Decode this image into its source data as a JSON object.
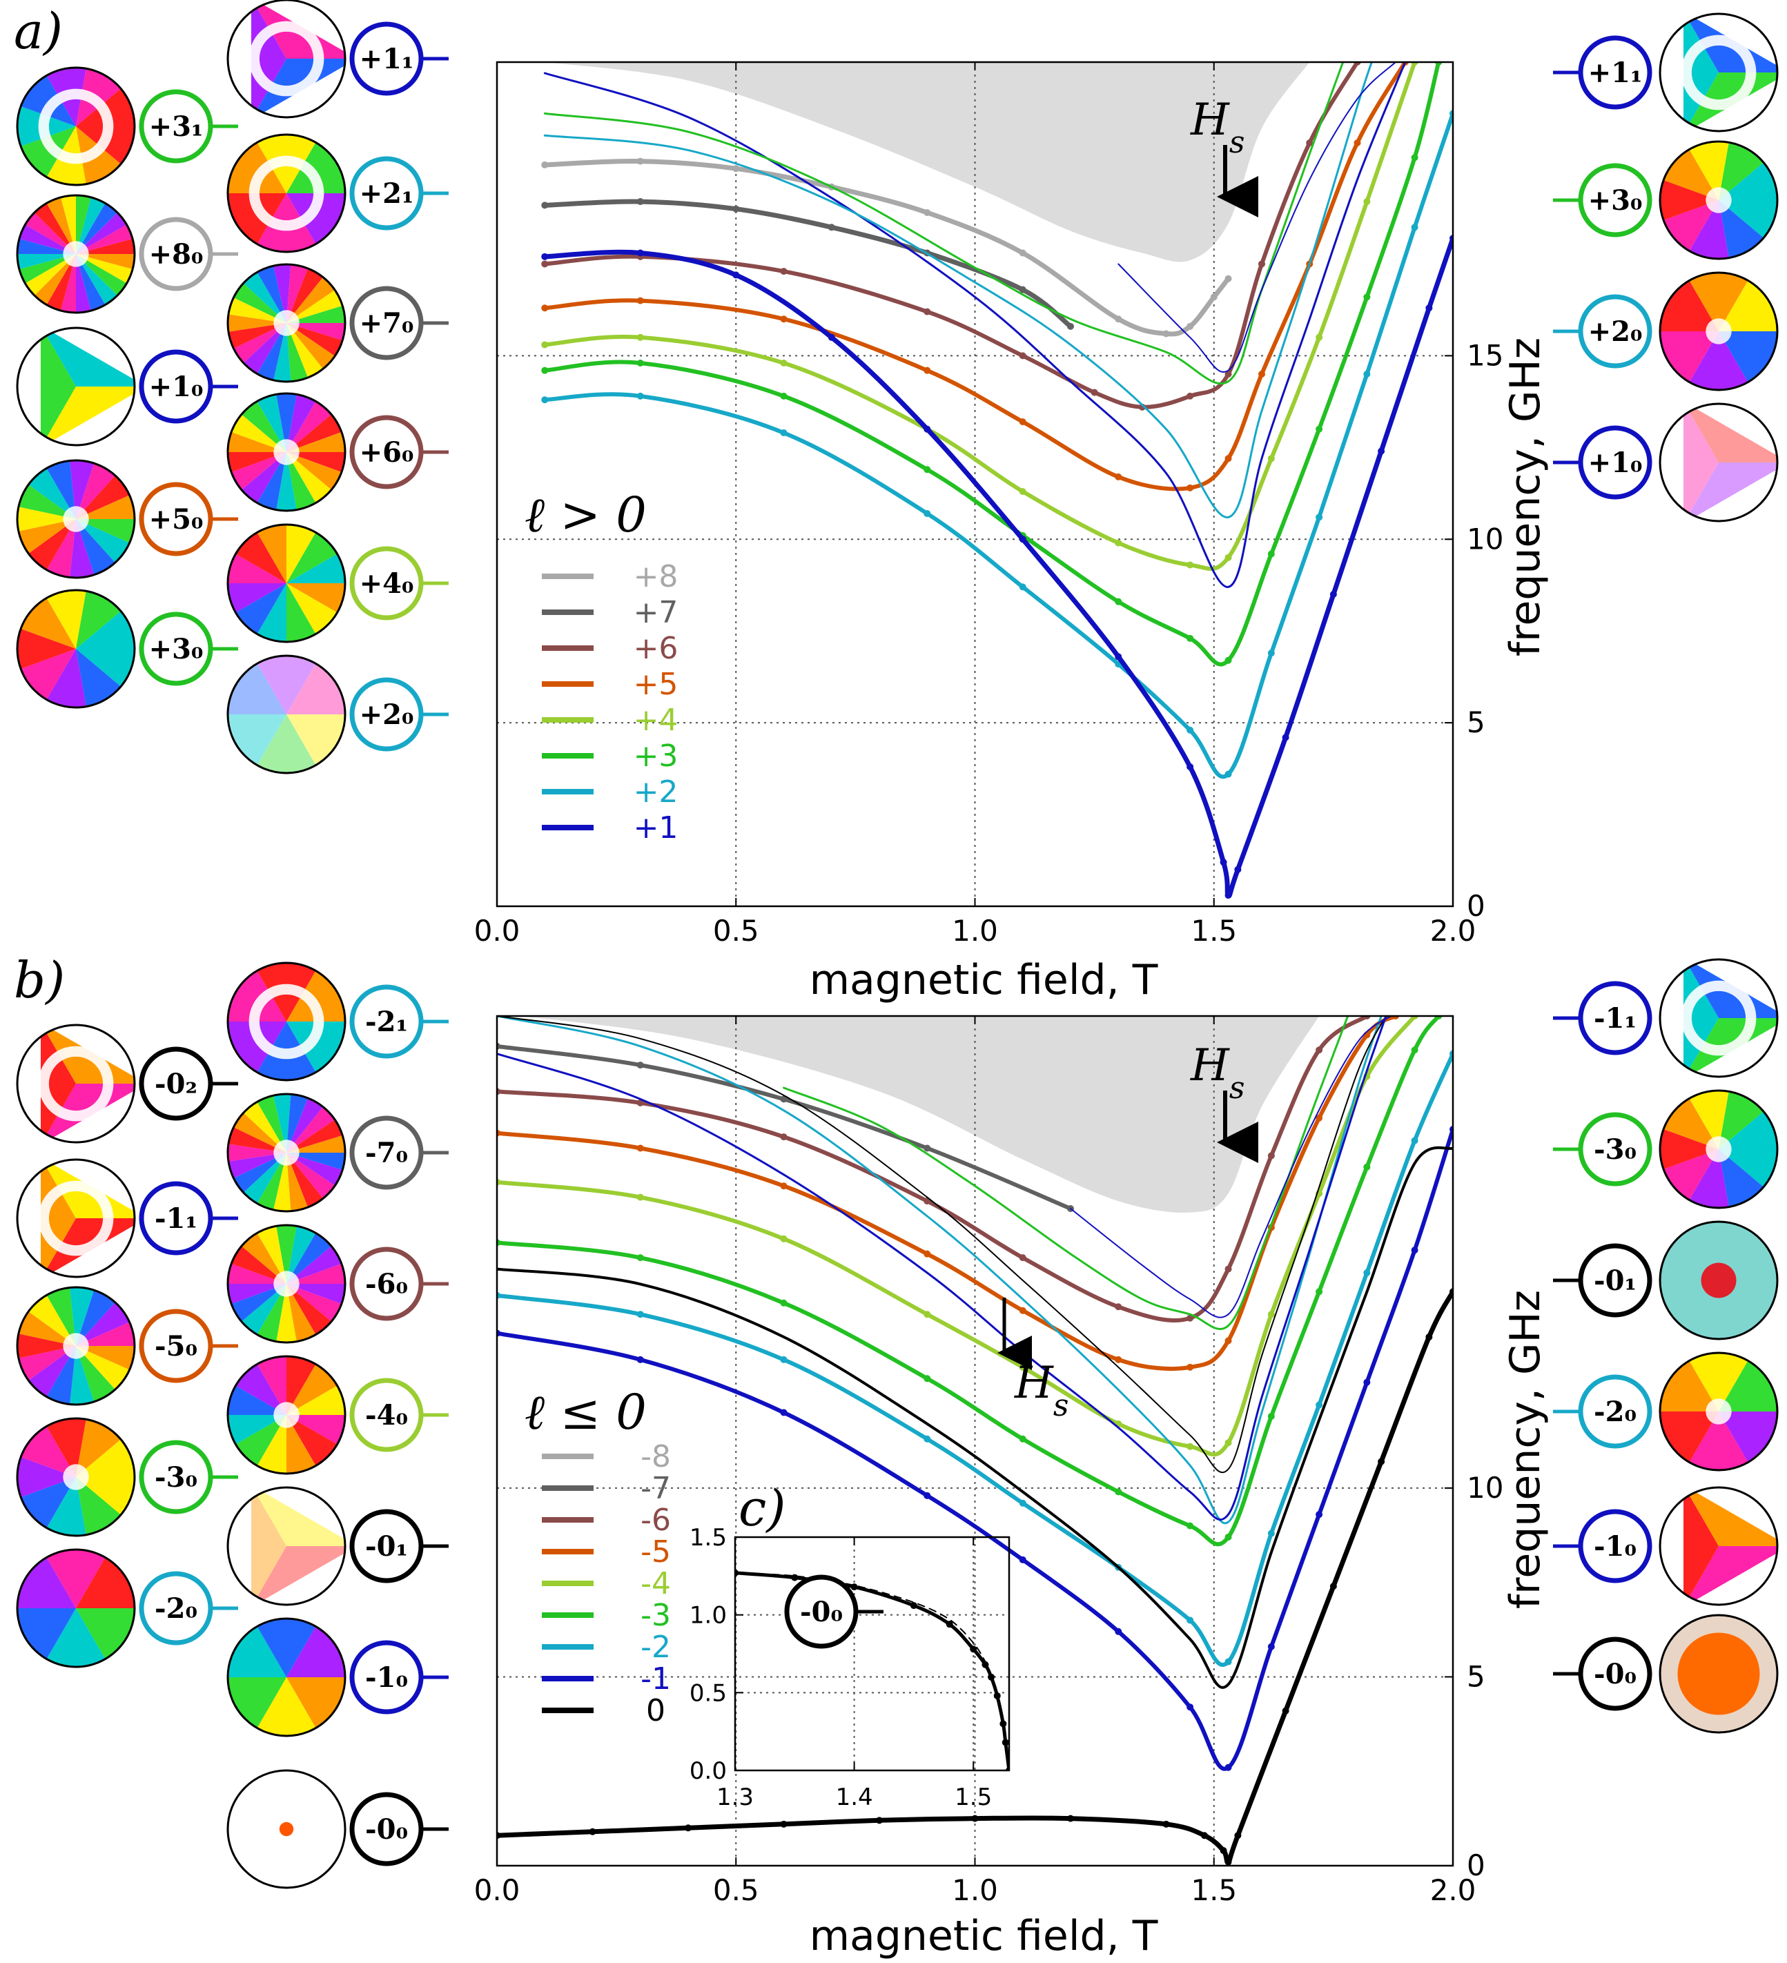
{
  "chart_data": [
    {
      "panel": "a)",
      "type": "line",
      "xlabel": "magnetic field, T",
      "ylabel": "frequency, GHz",
      "xlim": [
        0.0,
        2.0
      ],
      "ylim": [
        0,
        23
      ],
      "xticks": [
        "0.0",
        "0.5",
        "1.0",
        "1.5",
        "2.0"
      ],
      "yticks": [
        "0",
        "5",
        "10",
        "15"
      ],
      "grid": "dotted",
      "legend": {
        "title": "ℓ > 0",
        "placement": "center-left",
        "entries": [
          "+8",
          "+7",
          "+6",
          "+5",
          "+4",
          "+3",
          "+2",
          "+1"
        ]
      },
      "annotation": "H_s",
      "annotation_x": 1.53,
      "series": [
        {
          "name": "+8",
          "color": "#a8a8a8",
          "width": 7,
          "x": [
            0.1,
            0.3,
            0.5,
            0.7,
            0.9,
            1.1,
            1.3,
            1.4,
            1.45,
            1.5,
            1.53
          ],
          "y": [
            20.2,
            20.3,
            20.1,
            19.6,
            18.9,
            17.8,
            16.0,
            15.6,
            15.8,
            16.6,
            17.1
          ]
        },
        {
          "name": "+7",
          "color": "#606060",
          "width": 7,
          "x": [
            0.1,
            0.3,
            0.5,
            0.7,
            0.9,
            1.1,
            1.2
          ],
          "y": [
            19.1,
            19.2,
            19.0,
            18.5,
            17.8,
            16.8,
            15.8
          ]
        },
        {
          "name": "+6",
          "color": "#8b4a4a",
          "width": 6,
          "x": [
            0.1,
            0.3,
            0.6,
            0.9,
            1.1,
            1.25,
            1.35,
            1.45,
            1.53,
            1.6,
            1.7,
            1.8
          ],
          "y": [
            17.5,
            17.7,
            17.3,
            16.2,
            15.0,
            14.0,
            13.6,
            13.9,
            14.5,
            17.5,
            20.8,
            23.0
          ]
        },
        {
          "name": "+5",
          "color": "#d35400",
          "width": 6,
          "x": [
            0.1,
            0.3,
            0.6,
            0.9,
            1.1,
            1.3,
            1.45,
            1.53,
            1.6,
            1.7,
            1.8,
            1.9
          ],
          "y": [
            16.3,
            16.5,
            16.0,
            14.6,
            13.2,
            11.7,
            11.4,
            12.2,
            14.5,
            17.5,
            20.8,
            23.0
          ]
        },
        {
          "name": "+4",
          "color": "#9acd32",
          "width": 6,
          "x": [
            0.1,
            0.3,
            0.6,
            0.9,
            1.1,
            1.3,
            1.45,
            1.53,
            1.62,
            1.72,
            1.82,
            1.92
          ],
          "y": [
            15.3,
            15.5,
            14.8,
            13.0,
            11.3,
            9.9,
            9.3,
            9.5,
            12.2,
            15.5,
            19.2,
            23.0
          ]
        },
        {
          "name": "+3",
          "color": "#22c022",
          "width": 6,
          "x": [
            0.1,
            0.3,
            0.6,
            0.9,
            1.1,
            1.3,
            1.45,
            1.53,
            1.62,
            1.72,
            1.82,
            1.92,
            1.97
          ],
          "y": [
            14.6,
            14.8,
            13.9,
            11.9,
            10.1,
            8.3,
            7.3,
            6.7,
            9.6,
            13.0,
            16.6,
            20.4,
            23.0
          ]
        },
        {
          "name": "+2",
          "color": "#17a8c8",
          "width": 6,
          "x": [
            0.1,
            0.3,
            0.6,
            0.9,
            1.1,
            1.3,
            1.45,
            1.53,
            1.62,
            1.72,
            1.82,
            1.92,
            2.0
          ],
          "y": [
            13.8,
            13.9,
            12.9,
            10.7,
            8.7,
            6.6,
            4.8,
            3.6,
            6.9,
            10.6,
            14.5,
            18.5,
            21.6
          ]
        },
        {
          "name": "+1",
          "color": "#1010c0",
          "width": 7,
          "x": [
            0.1,
            0.3,
            0.5,
            0.7,
            0.9,
            1.1,
            1.3,
            1.45,
            1.52,
            1.53,
            1.55,
            1.65,
            1.75,
            1.85,
            1.95,
            2.0
          ],
          "y": [
            17.7,
            17.8,
            17.2,
            15.5,
            13.0,
            10.0,
            6.8,
            3.8,
            1.2,
            0.3,
            1.0,
            4.6,
            8.5,
            12.4,
            16.3,
            18.2
          ]
        },
        {
          "name": "+1₁",
          "color": "#1010c0",
          "width": 3,
          "x": [
            0.1,
            0.4,
            0.7,
            1.0,
            1.2,
            1.4,
            1.53,
            1.6,
            1.7,
            1.8,
            1.9
          ],
          "y": [
            22.7,
            21.5,
            19.3,
            16.6,
            14.3,
            11.8,
            8.7,
            12.2,
            16.0,
            19.8,
            23.0
          ]
        },
        {
          "name": "+3₁",
          "color": "#22c022",
          "width": 3,
          "x": [
            0.1,
            0.4,
            0.7,
            1.0,
            1.2,
            1.4,
            1.53,
            1.6,
            1.7,
            1.77
          ],
          "y": [
            21.6,
            21.1,
            19.6,
            17.4,
            16.0,
            15.1,
            14.3,
            16.8,
            20.5,
            23.0
          ]
        },
        {
          "name": "+2₁",
          "color": "#17a8c8",
          "width": 3,
          "x": [
            0.1,
            0.4,
            0.7,
            1.0,
            1.2,
            1.4,
            1.53,
            1.6,
            1.7,
            1.8,
            1.83
          ],
          "y": [
            21.0,
            20.6,
            19.2,
            17.0,
            15.3,
            13.0,
            10.6,
            13.5,
            17.5,
            21.8,
            23.0
          ]
        },
        {
          "name": "+1₀ branch",
          "color": "#1010c0",
          "width": 2,
          "x": [
            1.3,
            1.45,
            1.53,
            1.6,
            1.7,
            1.8,
            1.88
          ],
          "y": [
            17.5,
            15.5,
            14.6,
            16.8,
            19.8,
            22.0,
            23.0
          ]
        }
      ],
      "grey_region": "continuum",
      "left_mode_labels": [
        "+1₁",
        "+3₁",
        "+2₁",
        "+8₀",
        "+7₀",
        "+1₀",
        "+6₀",
        "+5₀",
        "+4₀",
        "+3₀",
        "+2₀"
      ],
      "right_mode_labels": [
        "+1₁",
        "+3₀",
        "+2₀",
        "+1₀"
      ]
    },
    {
      "panel": "b)",
      "type": "line",
      "xlabel": "magnetic field, T",
      "ylabel": "frequency, GHz",
      "xlim": [
        0.0,
        2.0
      ],
      "ylim": [
        0,
        22.5
      ],
      "xticks": [
        "0.0",
        "0.5",
        "1.0",
        "1.5",
        "2.0"
      ],
      "yticks": [
        "0",
        "5",
        "10"
      ],
      "grid": "dotted",
      "legend": {
        "title": "ℓ ≤ 0",
        "placement": "center-left",
        "entries": [
          "-8",
          "-7",
          "-6",
          "-5",
          "-4",
          "-3",
          "-2",
          "-1",
          "0"
        ]
      },
      "annotation": "H_s",
      "annotation_x": 1.53,
      "series": [
        {
          "name": "-7",
          "color": "#606060",
          "width": 6,
          "x": [
            0.0,
            0.3,
            0.6,
            0.9,
            1.2
          ],
          "y": [
            21.7,
            21.2,
            20.3,
            19.0,
            17.4
          ]
        },
        {
          "name": "-6",
          "color": "#8b4a4a",
          "width": 6,
          "x": [
            0.0,
            0.3,
            0.6,
            0.9,
            1.1,
            1.3,
            1.45,
            1.53,
            1.62,
            1.72,
            1.82
          ],
          "y": [
            20.5,
            20.2,
            19.3,
            17.6,
            16.1,
            14.8,
            14.5,
            15.8,
            18.8,
            21.6,
            22.5
          ]
        },
        {
          "name": "-5",
          "color": "#d35400",
          "width": 6,
          "x": [
            0.0,
            0.3,
            0.6,
            0.9,
            1.1,
            1.3,
            1.45,
            1.53,
            1.62,
            1.72,
            1.82,
            1.88
          ],
          "y": [
            19.4,
            19.0,
            18.0,
            16.2,
            14.7,
            13.4,
            13.2,
            13.9,
            16.9,
            19.8,
            22.0,
            22.5
          ]
        },
        {
          "name": "-4",
          "color": "#9acd32",
          "width": 6,
          "x": [
            0.0,
            0.3,
            0.6,
            0.9,
            1.1,
            1.3,
            1.45,
            1.53,
            1.62,
            1.72,
            1.82,
            1.92
          ],
          "y": [
            18.1,
            17.7,
            16.6,
            14.6,
            13.2,
            11.7,
            11.1,
            11.2,
            14.6,
            17.8,
            20.9,
            22.5
          ]
        },
        {
          "name": "-3",
          "color": "#22c022",
          "width": 6,
          "x": [
            0.0,
            0.3,
            0.6,
            0.9,
            1.1,
            1.3,
            1.45,
            1.53,
            1.62,
            1.72,
            1.82,
            1.92,
            1.97
          ],
          "y": [
            16.5,
            16.1,
            14.9,
            12.9,
            11.3,
            9.9,
            9.0,
            8.7,
            11.9,
            15.2,
            18.5,
            21.6,
            22.5
          ]
        },
        {
          "name": "-2",
          "color": "#17a8c8",
          "width": 6,
          "x": [
            0.0,
            0.3,
            0.6,
            0.9,
            1.1,
            1.3,
            1.45,
            1.53,
            1.62,
            1.72,
            1.82,
            1.92,
            2.0
          ],
          "y": [
            15.1,
            14.6,
            13.4,
            11.3,
            9.6,
            7.9,
            6.5,
            5.4,
            8.8,
            12.2,
            15.7,
            19.2,
            21.5
          ]
        },
        {
          "name": "-1",
          "color": "#1010c0",
          "width": 6,
          "x": [
            0.0,
            0.3,
            0.6,
            0.9,
            1.1,
            1.3,
            1.45,
            1.53,
            1.62,
            1.72,
            1.82,
            1.92,
            2.0
          ],
          "y": [
            14.1,
            13.4,
            12.0,
            9.8,
            8.1,
            6.2,
            4.2,
            2.6,
            5.8,
            9.3,
            12.8,
            16.3,
            19.5
          ]
        },
        {
          "name": "0",
          "color": "#000000",
          "width": 7,
          "x": [
            0.0,
            0.2,
            0.4,
            0.6,
            0.8,
            1.0,
            1.2,
            1.4,
            1.48,
            1.52,
            1.53,
            1.55,
            1.65,
            1.75,
            1.85,
            1.95,
            2.0
          ],
          "y": [
            0.8,
            0.9,
            1.0,
            1.1,
            1.2,
            1.25,
            1.25,
            1.1,
            0.8,
            0.4,
            0.1,
            0.8,
            4.1,
            7.4,
            10.7,
            14.0,
            15.2
          ]
        },
        {
          "name": "-0₁",
          "color": "#000000",
          "width": 4,
          "x": [
            0.0,
            0.3,
            0.6,
            0.9,
            1.1,
            1.3,
            1.45,
            1.53,
            1.62,
            1.72,
            1.82,
            1.92,
            2.0
          ],
          "y": [
            15.8,
            15.4,
            14.0,
            11.7,
            9.9,
            7.9,
            6.0,
            4.8,
            8.3,
            11.8,
            15.2,
            18.6,
            19.0
          ]
        },
        {
          "name": "-2₁",
          "color": "#17a8c8",
          "width": 3,
          "x": [
            0.0,
            0.3,
            0.6,
            0.9,
            1.1,
            1.3,
            1.45,
            1.53,
            1.6,
            1.7,
            1.8,
            1.85
          ],
          "y": [
            22.5,
            21.7,
            20.0,
            17.2,
            15.0,
            12.6,
            10.6,
            9.1,
            12.0,
            16.2,
            20.6,
            22.5
          ]
        },
        {
          "name": "-0₂",
          "color": "#000000",
          "width": 2,
          "x": [
            0.0,
            0.3,
            0.6,
            0.9,
            1.1,
            1.3,
            1.45,
            1.53,
            1.6,
            1.7,
            1.8,
            1.86
          ],
          "y": [
            22.5,
            21.9,
            20.4,
            17.7,
            15.5,
            13.2,
            11.4,
            10.5,
            13.5,
            17.2,
            21.0,
            22.5
          ]
        },
        {
          "name": "-1₁",
          "color": "#1010c0",
          "width": 3,
          "x": [
            0.0,
            0.3,
            0.6,
            0.9,
            1.1,
            1.3,
            1.45,
            1.53,
            1.6,
            1.7,
            1.8,
            1.86
          ],
          "y": [
            21.5,
            20.3,
            18.3,
            15.7,
            13.6,
            11.6,
            9.9,
            9.3,
            12.4,
            16.3,
            20.3,
            22.5
          ]
        },
        {
          "name": "-3₁",
          "color": "#22c022",
          "width": 3,
          "x": [
            0.6,
            0.8,
            1.0,
            1.2,
            1.35,
            1.45,
            1.53,
            1.6,
            1.7,
            1.78
          ],
          "y": [
            20.6,
            19.6,
            18.0,
            16.2,
            15.0,
            14.6,
            14.3,
            16.3,
            19.8,
            22.5
          ]
        },
        {
          "name": "-1₀ branch",
          "color": "#1010c0",
          "width": 2,
          "x": [
            1.2,
            1.35,
            1.45,
            1.53,
            1.6,
            1.7,
            1.8,
            1.87
          ],
          "y": [
            17.4,
            15.9,
            15.0,
            14.6,
            16.6,
            19.5,
            21.8,
            22.5
          ]
        }
      ],
      "grey_region": "continuum",
      "left_mode_labels": [
        "-2₁",
        "-0₂",
        "-7₀",
        "-1₁",
        "-6₀",
        "-5₀",
        "-4₀",
        "-3₀",
        "-0₁",
        "-2₀",
        "-1₀",
        "-0₀"
      ],
      "right_mode_labels": [
        "-1₁",
        "-3₀",
        "-0₁",
        "-2₀",
        "-1₀",
        "-0₀"
      ]
    },
    {
      "panel": "c)",
      "type": "line",
      "xlim": [
        1.3,
        1.53
      ],
      "ylim": [
        0.0,
        1.5
      ],
      "xticks": [
        "1.3",
        "1.4",
        "1.5"
      ],
      "yticks": [
        "0.0",
        "0.5",
        "1.0",
        "1.5"
      ],
      "annotation": "H_s",
      "mode_label": "-0₀",
      "series": [
        {
          "name": "-0₀",
          "color": "#000000",
          "width": 5,
          "x": [
            1.3,
            1.35,
            1.4,
            1.45,
            1.48,
            1.5,
            1.51,
            1.515,
            1.52,
            1.525,
            1.527,
            1.53
          ],
          "y": [
            1.27,
            1.24,
            1.18,
            1.06,
            0.94,
            0.78,
            0.68,
            0.6,
            0.48,
            0.3,
            0.18,
            0.0
          ]
        },
        {
          "name": "-0₀ dashed",
          "color": "#000000",
          "width": 2,
          "dashed": true,
          "x": [
            1.3,
            1.35,
            1.4,
            1.45,
            1.48,
            1.5,
            1.51
          ],
          "y": [
            1.27,
            1.25,
            1.19,
            1.08,
            0.97,
            0.82,
            0.7
          ]
        }
      ]
    }
  ],
  "text": {
    "panel_a": "a)",
    "panel_b": "b)",
    "panel_c": "c)",
    "xlabel_a": "magnetic field, T",
    "xlabel_b": "magnetic field, T",
    "ylabel_a": "frequency, GHz",
    "ylabel_b": "frequency, GHz",
    "legend_title_a": "ℓ > 0",
    "legend_title_b": "ℓ ≤ 0",
    "hs": "H",
    "hs_sub": "s"
  }
}
